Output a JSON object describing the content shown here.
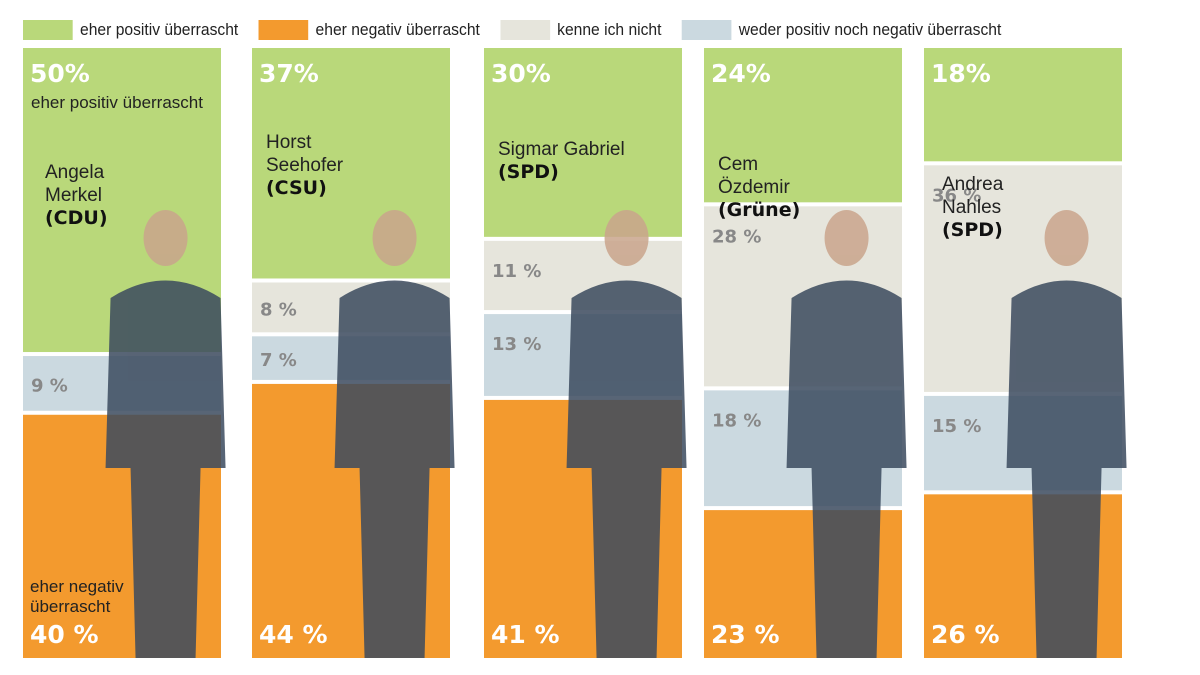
{
  "chart_data": {
    "type": "bar",
    "stacked": true,
    "orientation": "vertical",
    "categories": [
      "Angela Merkel (CDU)",
      "Horst Seehofer (CSU)",
      "Sigmar Gabriel (SPD)",
      "Cem Özdemir (Grüne)",
      "Andrea Nahles (SPD)"
    ],
    "people": [
      {
        "name_lines": [
          "Angela",
          "Merkel"
        ],
        "party": "(CDU)"
      },
      {
        "name_lines": [
          "Horst",
          "Seehofer"
        ],
        "party": "(CSU)"
      },
      {
        "name_lines": [
          "Sigmar Gabriel"
        ],
        "party": "(SPD)"
      },
      {
        "name_lines": [
          "Cem",
          "Özdemir"
        ],
        "party": "(Grüne)"
      },
      {
        "name_lines": [
          "Andrea",
          "Nahles"
        ],
        "party": "(SPD)"
      }
    ],
    "series": [
      {
        "name": "eher positiv überrascht",
        "color": "#b9d87a",
        "values": [
          50,
          37,
          30,
          24,
          18
        ]
      },
      {
        "name": "kenne ich nicht",
        "color": "#e6e5dc",
        "values": [
          0,
          8,
          11,
          28,
          36
        ]
      },
      {
        "name": "weder positiv noch negativ überrascht",
        "color": "#cbd9e0",
        "values": [
          9,
          7,
          13,
          18,
          15
        ]
      },
      {
        "name": "eher negativ überrascht",
        "color": "#f39a2e",
        "values": [
          40,
          44,
          41,
          23,
          26
        ]
      }
    ],
    "annotations": {
      "positive_label": "eher positiv überrascht",
      "negative_label_lines": [
        "eher negativ",
        "überrascht"
      ]
    },
    "legend": {
      "placement": "top",
      "order": [
        "eher positiv überrascht",
        "eher negativ überrascht",
        "kenne ich nicht",
        "weder positiv noch negativ überrascht"
      ]
    },
    "grid": false
  }
}
